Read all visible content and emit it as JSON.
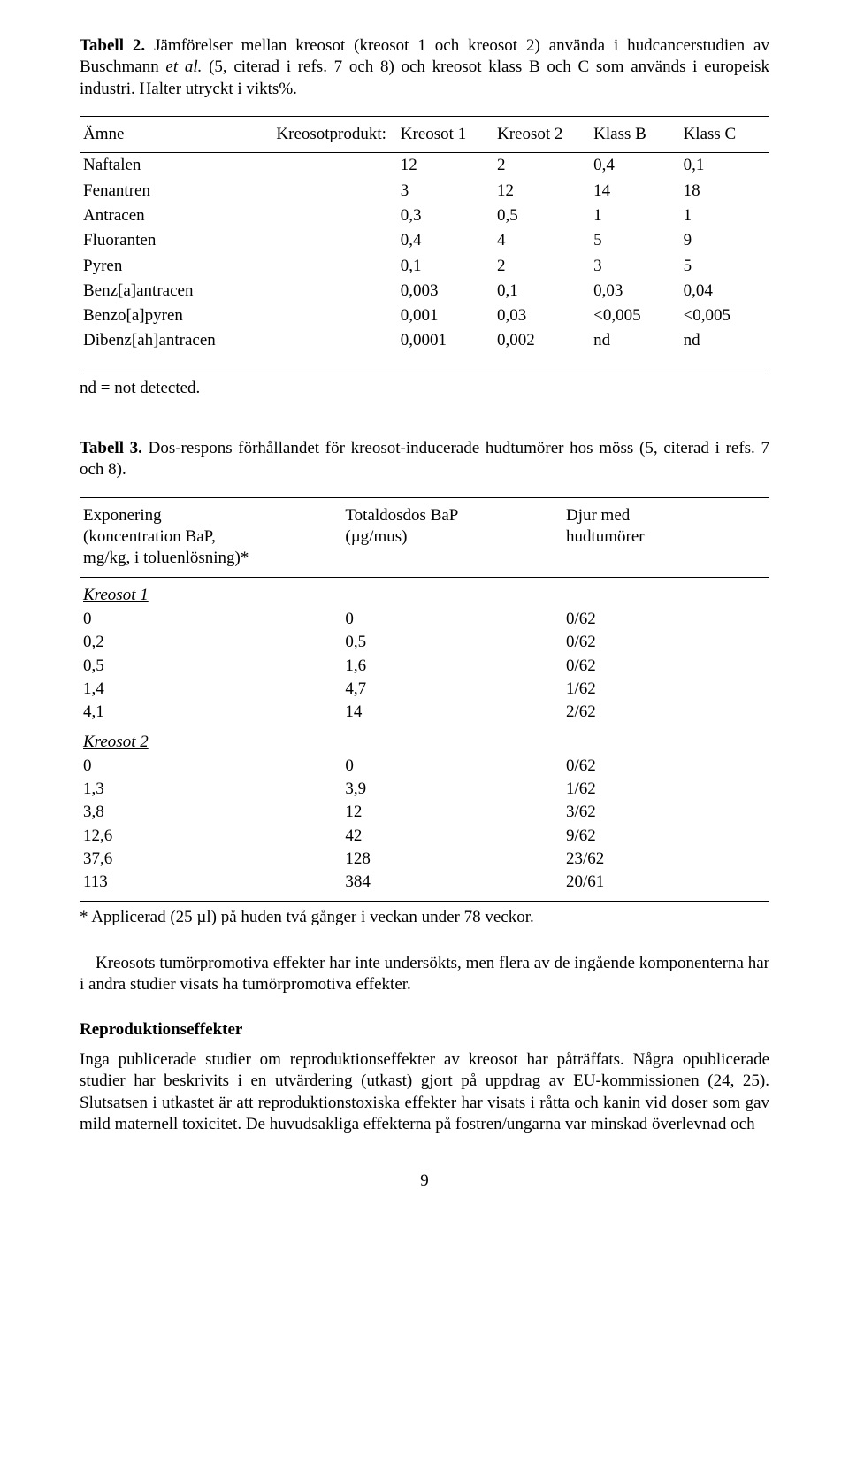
{
  "colors": {
    "text": "#000000",
    "background": "#ffffff",
    "rule": "#000000"
  },
  "typography": {
    "family": "Times New Roman",
    "base_size_pt": 14
  },
  "table2": {
    "caption_lead": "Tabell 2.",
    "caption_rest": " Jämförelser mellan kreosot (kreosot 1 och kreosot 2) använda i hudcancerstudien av Buschmann ",
    "caption_etal": "et al.",
    "caption_rest2": " (5, citerad i refs. 7 och 8) och kreosot klass B och C som används i europeisk industri. Halter utryckt i vikts%.",
    "headers": [
      "Ämne",
      "Kreosotprodukt:",
      "Kreosot 1",
      "Kreosot 2",
      "Klass B",
      "Klass C"
    ],
    "rows": [
      [
        "Naftalen",
        "12",
        "2",
        "0,4",
        "0,1"
      ],
      [
        "Fenantren",
        "3",
        "12",
        "14",
        "18"
      ],
      [
        "Antracen",
        "0,3",
        "0,5",
        "1",
        "1"
      ],
      [
        "Fluoranten",
        "0,4",
        "4",
        "5",
        "9"
      ],
      [
        "Pyren",
        "0,1",
        "2",
        "3",
        "5"
      ],
      [
        "Benz[a]antracen",
        "0,003",
        "0,1",
        "0,03",
        "0,04"
      ],
      [
        "Benzo[a]pyren",
        "0,001",
        "0,03",
        "<0,005",
        "<0,005"
      ],
      [
        "Dibenz[ah]antracen",
        "0,0001",
        "0,002",
        "nd",
        "nd"
      ]
    ],
    "note": "nd = not detected."
  },
  "table3": {
    "caption_lead": "Tabell 3.",
    "caption_rest": " Dos-respons förhållandet för kreosot-inducerade hudtumörer hos möss (5, citerad i refs. 7 och 8).",
    "headers": {
      "col0_l1": "Exponering",
      "col0_l2": "(koncentration BaP,",
      "col0_l3": "mg/kg, i toluenlösning)*",
      "col1_l1": "Totaldosdos BaP",
      "col1_l2": "(µg/mus)",
      "col2_l1": "Djur med",
      "col2_l2": "hudtumörer"
    },
    "section1_label": "Kreosot 1",
    "section1_rows": [
      [
        "0",
        "0",
        "0/62"
      ],
      [
        "0,2",
        "0,5",
        "0/62"
      ],
      [
        "0,5",
        "1,6",
        "0/62"
      ],
      [
        "1,4",
        "4,7",
        "1/62"
      ],
      [
        "4,1",
        "14",
        "2/62"
      ]
    ],
    "section2_label": "Kreosot 2",
    "section2_rows": [
      [
        "0",
        "0",
        "0/62"
      ],
      [
        "1,3",
        "3,9",
        "1/62"
      ],
      [
        "3,8",
        "12",
        "3/62"
      ],
      [
        "12,6",
        "42",
        "9/62"
      ],
      [
        "37,6",
        "128",
        "23/62"
      ],
      [
        "113",
        "384",
        "20/61"
      ]
    ],
    "footnote": "* Applicerad (25 µl) på huden två gånger i veckan under 78 veckor."
  },
  "body": {
    "p1": "Kreosots tumörpromotiva effekter har inte undersökts, men flera av de ingående komponenterna har i andra studier visats ha tumörpromotiva effekter.",
    "h2": "Reproduktionseffekter",
    "p2": "Inga publicerade studier om reproduktionseffekter av kreosot har påträffats. Några opublicerade studier har beskrivits i en utvärdering (utkast) gjort på uppdrag av EU-kommissionen (24, 25). Slutsatsen i utkastet är att reproduktionstoxiska effekter har visats i råtta och kanin vid doser som gav mild maternell toxicitet. De huvudsakliga effekterna på fostren/ungarna var minskad överlevnad och"
  },
  "pagenum": "9"
}
